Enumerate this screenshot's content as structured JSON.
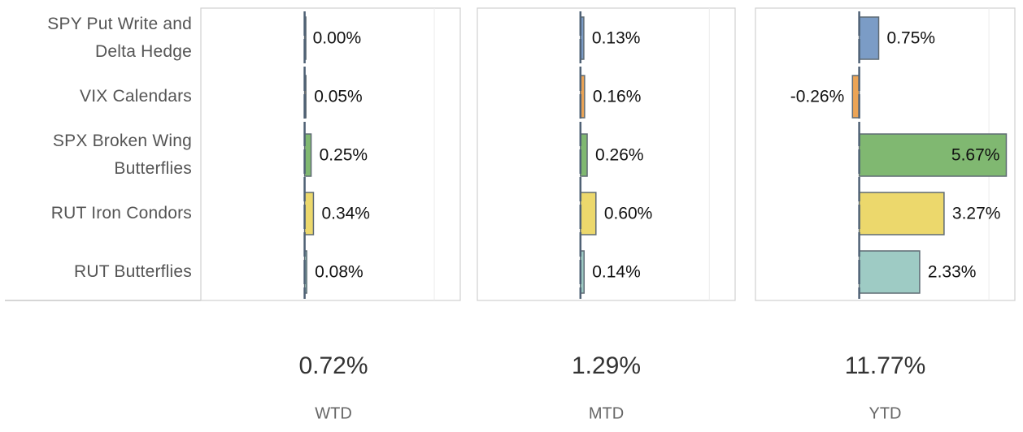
{
  "chart_data": [
    {
      "type": "bar",
      "orientation": "horizontal",
      "title": "WTD",
      "total": "0.72%",
      "categories": [
        "SPY Put Write and Delta Hedge",
        "VIX Calendars",
        "SPX Broken Wing Butterflies",
        "RUT Iron Condors",
        "RUT Butterflies"
      ],
      "colors": [
        "#7b9cc6",
        "#eba456",
        "#80b871",
        "#ecd86c",
        "#9ecbc4"
      ],
      "values": [
        0.0,
        0.05,
        0.25,
        0.34,
        0.08
      ],
      "value_labels": [
        "0.00%",
        "0.05%",
        "0.25%",
        "0.34%",
        "0.08%"
      ],
      "xlim": [
        -4,
        6
      ],
      "grid_lines": [
        5
      ]
    },
    {
      "type": "bar",
      "orientation": "horizontal",
      "title": "MTD",
      "total": "1.29%",
      "values": [
        0.13,
        0.16,
        0.26,
        0.6,
        0.14
      ],
      "value_labels": [
        "0.13%",
        "0.16%",
        "0.26%",
        "0.60%",
        "0.14%"
      ],
      "xlim": [
        -4,
        6
      ],
      "grid_lines": [
        5
      ]
    },
    {
      "type": "bar",
      "orientation": "horizontal",
      "title": "YTD",
      "total": "11.77%",
      "values": [
        0.75,
        -0.26,
        5.67,
        3.27,
        2.33
      ],
      "value_labels": [
        "0.75%",
        "-0.26%",
        "5.67%",
        "3.27%",
        "2.33%"
      ],
      "xlim": [
        -4,
        6
      ],
      "grid_lines": [
        5
      ]
    }
  ]
}
